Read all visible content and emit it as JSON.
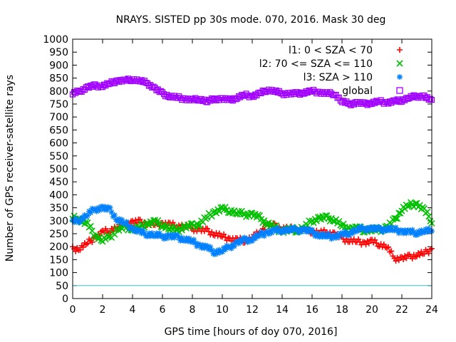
{
  "chart_data": {
    "type": "scatter",
    "title": "NRAYS. SISTED pp 30s mode. 070, 2016. Mask 30 deg",
    "xlabel": "GPS time [hours of doy 070, 2016]",
    "ylabel": "Number of GPS receiver-satellite rays",
    "xlim": [
      0,
      24
    ],
    "ylim": [
      0,
      1000
    ],
    "xticks": [
      0,
      2,
      4,
      6,
      8,
      10,
      12,
      14,
      16,
      18,
      20,
      22,
      24
    ],
    "yticks": [
      0,
      50,
      100,
      150,
      200,
      250,
      300,
      350,
      400,
      450,
      500,
      550,
      600,
      650,
      700,
      750,
      800,
      850,
      900,
      950,
      1000
    ],
    "legend_position": "top-right",
    "reference_line": {
      "y": 50,
      "color": "#40c0c0"
    },
    "series": [
      {
        "name": "l1: 0 < SZA < 70",
        "marker": "+",
        "color": "#ff0000",
        "x": [
          0,
          0.5,
          1,
          1.5,
          2,
          2.5,
          3,
          3.5,
          4,
          4.5,
          5,
          5.5,
          6,
          6.5,
          7,
          7.5,
          8,
          8.5,
          9,
          9.5,
          10,
          10.5,
          11,
          11.5,
          12,
          12.5,
          13,
          13.5,
          14,
          14.5,
          15,
          15.5,
          16,
          16.5,
          17,
          17.5,
          18,
          18.5,
          19,
          19.5,
          20,
          20.5,
          21,
          21.5,
          22,
          22.5,
          23,
          23.5,
          24
        ],
        "y": [
          190,
          195,
          215,
          235,
          255,
          265,
          275,
          285,
          295,
          295,
          290,
          285,
          290,
          285,
          280,
          280,
          270,
          265,
          260,
          250,
          240,
          230,
          225,
          225,
          235,
          255,
          285,
          280,
          270,
          270,
          265,
          265,
          260,
          255,
          255,
          250,
          230,
          225,
          220,
          215,
          220,
          210,
          200,
          155,
          155,
          160,
          170,
          175,
          190
        ]
      },
      {
        "name": "l2: 70 <= SZA <= 110",
        "marker": "x",
        "color": "#00c000",
        "x": [
          0,
          0.5,
          1,
          1.5,
          2,
          2.5,
          3,
          3.5,
          4,
          4.5,
          5,
          5.5,
          6,
          6.5,
          7,
          7.5,
          8,
          8.5,
          9,
          9.5,
          10,
          10.5,
          11,
          11.5,
          12,
          12.5,
          13,
          13.5,
          14,
          14.5,
          15,
          15.5,
          16,
          16.5,
          17,
          17.5,
          18,
          18.5,
          19,
          19.5,
          20,
          20.5,
          21,
          21.5,
          22,
          22.5,
          23,
          23.5,
          24
        ],
        "y": [
          310,
          305,
          285,
          245,
          225,
          240,
          265,
          275,
          270,
          275,
          290,
          295,
          285,
          270,
          265,
          275,
          280,
          290,
          315,
          335,
          345,
          340,
          330,
          325,
          325,
          310,
          290,
          275,
          260,
          265,
          265,
          275,
          300,
          310,
          310,
          305,
          280,
          270,
          270,
          265,
          265,
          265,
          275,
          300,
          345,
          360,
          365,
          340,
          300
        ]
      },
      {
        "name": "l3: SZA > 110",
        "marker": "*",
        "color": "#0080ff",
        "x": [
          0,
          0.5,
          1,
          1.5,
          2,
          2.5,
          3,
          3.5,
          4,
          4.5,
          5,
          5.5,
          6,
          6.5,
          7,
          7.5,
          8,
          8.5,
          9,
          9.5,
          10,
          10.5,
          11,
          11.5,
          12,
          12.5,
          13,
          13.5,
          14,
          14.5,
          15,
          15.5,
          16,
          16.5,
          17,
          17.5,
          18,
          18.5,
          19,
          19.5,
          20,
          20.5,
          21,
          21.5,
          22,
          22.5,
          23,
          23.5,
          24
        ],
        "y": [
          295,
          305,
          325,
          345,
          350,
          340,
          305,
          290,
          270,
          255,
          250,
          245,
          240,
          240,
          235,
          230,
          220,
          205,
          195,
          180,
          185,
          200,
          215,
          225,
          230,
          245,
          255,
          260,
          265,
          265,
          265,
          265,
          255,
          245,
          240,
          240,
          245,
          255,
          265,
          270,
          270,
          265,
          270,
          265,
          260,
          255,
          255,
          260,
          260
        ]
      },
      {
        "name": "global",
        "marker": "square",
        "color": "#a000ff",
        "x": [
          0,
          0.5,
          1,
          1.5,
          2,
          2.5,
          3,
          3.5,
          4,
          4.5,
          5,
          5.5,
          6,
          6.5,
          7,
          7.5,
          8,
          8.5,
          9,
          9.5,
          10,
          10.5,
          11,
          11.5,
          12,
          12.5,
          13,
          13.5,
          14,
          14.5,
          15,
          15.5,
          16,
          16.5,
          17,
          17.5,
          18,
          18.5,
          19,
          19.5,
          20,
          20.5,
          21,
          21.5,
          22,
          22.5,
          23,
          23.5,
          24
        ],
        "y": [
          790,
          800,
          815,
          820,
          820,
          830,
          840,
          840,
          845,
          840,
          830,
          810,
          790,
          780,
          775,
          770,
          765,
          770,
          760,
          770,
          770,
          765,
          775,
          785,
          780,
          790,
          805,
          800,
          790,
          790,
          790,
          795,
          800,
          795,
          790,
          790,
          760,
          750,
          755,
          750,
          755,
          760,
          755,
          760,
          765,
          775,
          780,
          780,
          760
        ]
      }
    ]
  }
}
